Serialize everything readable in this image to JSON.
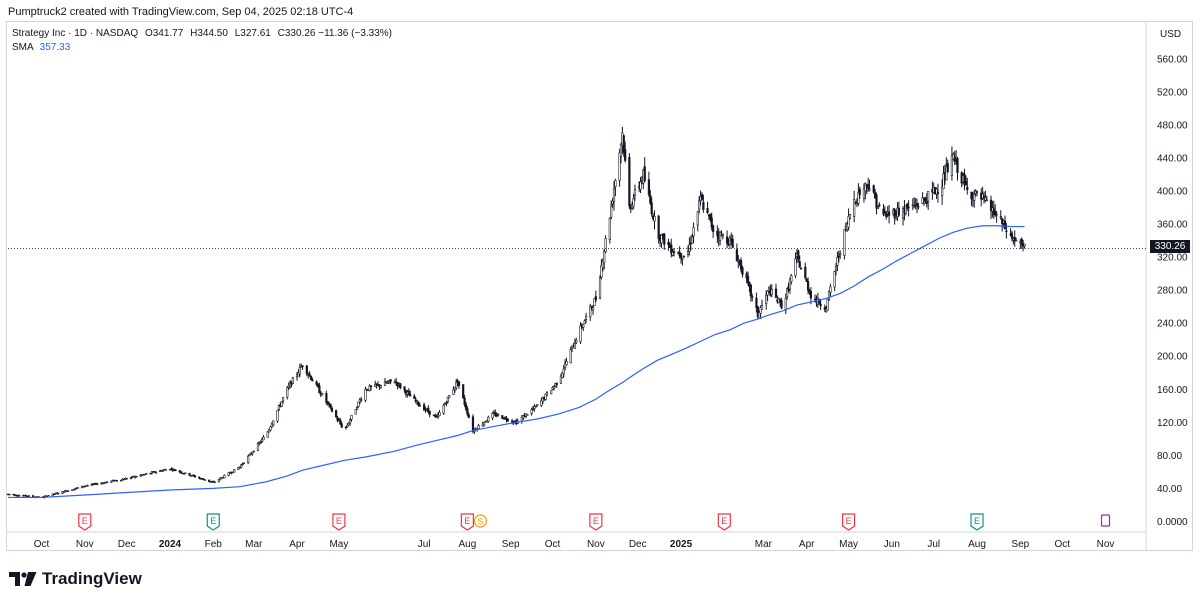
{
  "caption": "Pumptruck2 created with TradingView.com, Sep 04, 2025 02:18 UTC-4",
  "legend": {
    "symbol": "Strategy Inc · 1D · NASDAQ",
    "o_label": "O",
    "o_value": "341.77",
    "h_label": "H",
    "h_value": "344.50",
    "l_label": "L",
    "l_value": "327.61",
    "c_label": "C",
    "c_value": "330.26",
    "change": "−11.36 (−3.33%)",
    "sma_label": "SMA",
    "sma_value": "357.33"
  },
  "currency": "USD",
  "last_price_label": "330.26",
  "brand": "TradingView",
  "colors": {
    "candle": "#131722",
    "sma": "#2962ff",
    "earnings_red": "#f23645",
    "earnings_green": "#089981",
    "dividend_orange": "#ff9800",
    "event_purple": "#9c27b0",
    "grid": "#f0f3fa",
    "text": "#131722"
  },
  "events": [
    {
      "type": "E",
      "month": "Nov 2023",
      "color": "red"
    },
    {
      "type": "E",
      "month": "Feb 2024",
      "color": "green"
    },
    {
      "type": "E",
      "month": "May 2024",
      "color": "red"
    },
    {
      "type": "E",
      "month": "Aug 2024",
      "color": "red"
    },
    {
      "type": "S",
      "month": "Aug 2024",
      "color": "orange"
    },
    {
      "type": "E",
      "month": "Nov 2024",
      "color": "red"
    },
    {
      "type": "E",
      "month": "Feb 2025",
      "color": "red"
    },
    {
      "type": "E",
      "month": "May 2025",
      "color": "red"
    },
    {
      "type": "E",
      "month": "Aug 2025",
      "color": "green"
    },
    {
      "type": "event",
      "month": "Nov 2025",
      "color": "purple"
    }
  ],
  "chart_data": {
    "type": "line",
    "title": "Strategy Inc · 1D · NASDAQ",
    "ylabel": "USD",
    "ylim": [
      -8,
      572
    ],
    "y_ticks": [
      "560.00",
      "520.00",
      "480.00",
      "440.00",
      "400.00",
      "360.00",
      "320.00",
      "280.00",
      "240.00",
      "200.00",
      "160.00",
      "120.00",
      "80.00",
      "40.00",
      "0.0000"
    ],
    "x_ticks": [
      "Oct",
      "Nov",
      "Dec",
      "2024",
      "Feb",
      "Mar",
      "Apr",
      "May",
      "Jul",
      "Aug",
      "Sep",
      "Oct",
      "Nov",
      "Dec",
      "2025",
      "Mar",
      "Apr",
      "May",
      "Jun",
      "Jul",
      "Aug",
      "Sep",
      "Oct",
      "Nov"
    ],
    "x_ticks_bold": [
      "2024",
      "2025"
    ],
    "x": [
      "2023-09-07",
      "2023-10-01",
      "2023-11-01",
      "2023-12-01",
      "2024-01-01",
      "2024-02-01",
      "2024-02-20",
      "2024-03-10",
      "2024-03-25",
      "2024-04-05",
      "2024-04-20",
      "2024-05-05",
      "2024-05-20",
      "2024-06-10",
      "2024-06-25",
      "2024-07-10",
      "2024-07-25",
      "2024-08-05",
      "2024-08-20",
      "2024-09-05",
      "2024-09-20",
      "2024-10-05",
      "2024-10-20",
      "2024-11-01",
      "2024-11-10",
      "2024-11-20",
      "2024-11-25",
      "2024-12-05",
      "2024-12-15",
      "2024-12-25",
      "2025-01-05",
      "2025-01-15",
      "2025-01-25",
      "2025-02-05",
      "2025-02-15",
      "2025-02-25",
      "2025-03-05",
      "2025-03-15",
      "2025-03-25",
      "2025-04-05",
      "2025-04-15",
      "2025-04-25",
      "2025-05-05",
      "2025-05-15",
      "2025-05-25",
      "2025-06-05",
      "2025-06-15",
      "2025-06-25",
      "2025-07-05",
      "2025-07-15",
      "2025-07-25",
      "2025-08-05",
      "2025-08-15",
      "2025-08-25",
      "2025-09-04"
    ],
    "series": [
      {
        "name": "Strategy Inc",
        "values": [
          33,
          29,
          43,
          52,
          64,
          47,
          66,
          105,
          160,
          190,
          150,
          110,
          160,
          170,
          145,
          125,
          170,
          110,
          130,
          120,
          140,
          170,
          230,
          270,
          360,
          470,
          380,
          420,
          350,
          330,
          320,
          390,
          350,
          340,
          300,
          250,
          280,
          260,
          320,
          270,
          260,
          330,
          390,
          410,
          370,
          375,
          380,
          390,
          405,
          440,
          400,
          390,
          370,
          345,
          330
        ]
      },
      {
        "name": "SMA",
        "values": [
          29,
          29,
          32,
          35,
          38,
          40,
          42,
          48,
          55,
          62,
          68,
          74,
          78,
          85,
          92,
          98,
          104,
          110,
          115,
          120,
          124,
          130,
          138,
          148,
          158,
          168,
          174,
          185,
          195,
          202,
          210,
          218,
          226,
          232,
          240,
          245,
          250,
          255,
          262,
          266,
          270,
          276,
          285,
          296,
          305,
          316,
          325,
          334,
          343,
          350,
          355,
          358,
          358,
          357,
          357
        ]
      }
    ]
  }
}
